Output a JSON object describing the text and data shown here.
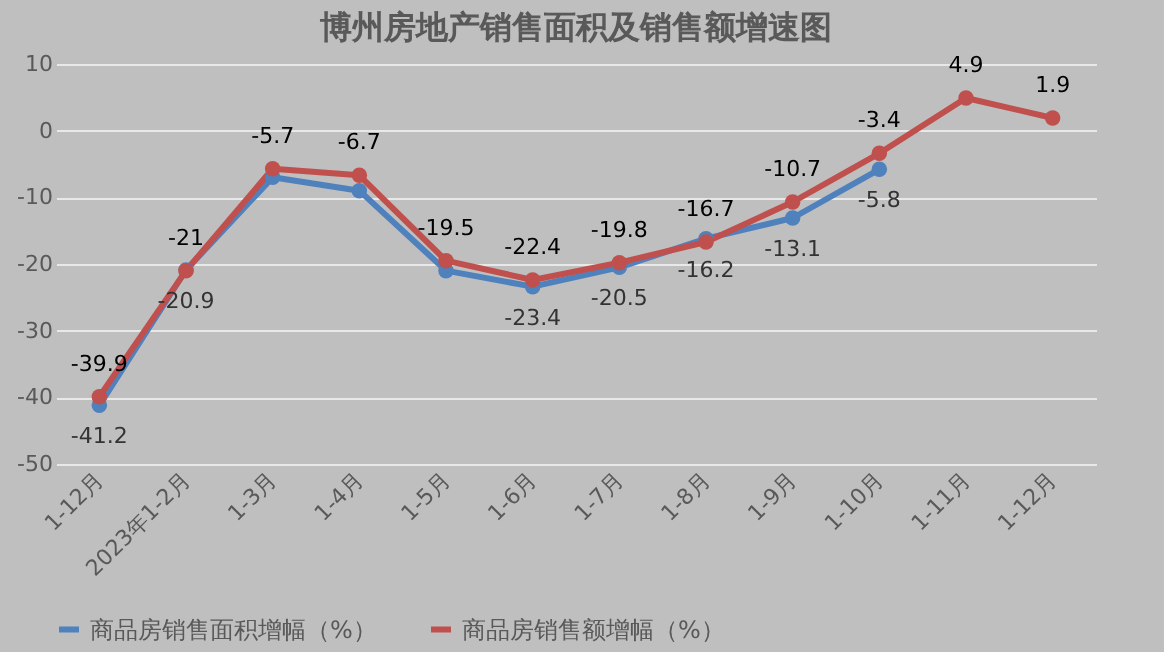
{
  "chart_data": {
    "type": "line",
    "title": "博州房地产销售面积及销售额增速图",
    "categories": [
      "1-12月",
      "2023年1-2月",
      "1-3月",
      "1-4月",
      "1-5月",
      "1-6月",
      "1-7月",
      "1-8月",
      "1-9月",
      "1-10月",
      "1-11月",
      "1-12月"
    ],
    "series": [
      {
        "name": "商品房销售面积增幅（%）",
        "color": "#4f81bd",
        "values": [
          -41.2,
          -20.9,
          -7,
          -9,
          -21,
          -23.4,
          -20.5,
          -16.2,
          -13.1,
          -5.8,
          null,
          null
        ],
        "value_labels": [
          "-41.2",
          "-20.9",
          null,
          null,
          null,
          "-23.4",
          "-20.5",
          "-16.2",
          "-13.1",
          "-5.8",
          null,
          null
        ]
      },
      {
        "name": "商品房销售额增幅（%）",
        "color": "#c0504d",
        "values": [
          -39.9,
          -21,
          -5.7,
          -6.7,
          -19.5,
          -22.4,
          -19.8,
          -16.7,
          -10.7,
          -3.4,
          4.9,
          1.9
        ],
        "value_labels": [
          "-39.9",
          "-21",
          "-5.7",
          "-6.7",
          "-19.5",
          "-22.4",
          "-19.8",
          "-16.7",
          "-10.7",
          "-3.4",
          "4.9",
          "1.9"
        ]
      }
    ],
    "ylim": [
      -50,
      10
    ],
    "yticks": [
      -50,
      -40,
      -30,
      -20,
      -10,
      0,
      10
    ],
    "grid": "y",
    "legend": "bottom",
    "marker": "circle",
    "line_style": "solid"
  }
}
